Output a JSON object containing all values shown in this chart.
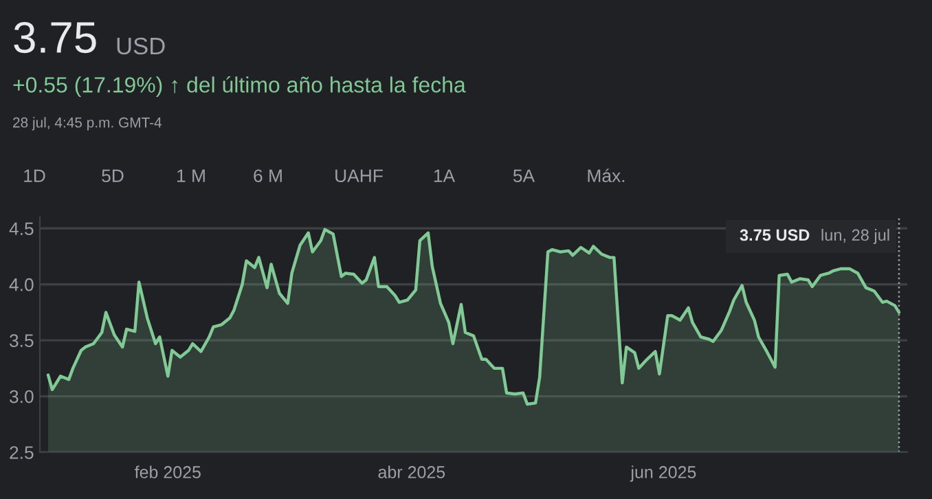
{
  "chart_data": {
    "type": "area",
    "title": "3.75",
    "subtitle": "+0.55 (17.19%) ↑ del último año hasta la fecha",
    "annotations": [
      "USD",
      "28 jul, 4:45 p.m. GMT-4",
      "1D",
      "5D",
      "1 M",
      "6 M",
      "UAHF",
      "1A",
      "5A",
      "Máx.",
      "3.75 USD",
      "lun, 28 jul"
    ],
    "x": [
      "2025-01-03",
      "2025-01-04",
      "2025-01-06",
      "2025-01-08",
      "2025-01-09",
      "2025-01-11",
      "2025-01-12",
      "2025-01-14",
      "2025-01-16",
      "2025-01-17",
      "2025-01-19",
      "2025-01-21",
      "2025-01-22",
      "2025-01-24",
      "2025-01-25",
      "2025-01-27",
      "2025-01-29",
      "2025-01-30",
      "2025-02-01",
      "2025-02-02",
      "2025-02-04",
      "2025-02-06",
      "2025-02-07",
      "2025-02-09",
      "2025-02-11",
      "2025-02-12",
      "2025-02-14",
      "2025-02-16",
      "2025-02-17",
      "2025-02-19",
      "2025-02-20",
      "2025-02-22",
      "2025-02-23",
      "2025-02-25",
      "2025-02-26",
      "2025-02-28",
      "2025-03-02",
      "2025-03-03",
      "2025-03-05",
      "2025-03-07",
      "2025-03-08",
      "2025-03-10",
      "2025-03-11",
      "2025-03-13",
      "2025-03-15",
      "2025-03-16",
      "2025-03-18",
      "2025-03-20",
      "2025-03-21",
      "2025-03-23",
      "2025-03-24",
      "2025-03-26",
      "2025-03-28",
      "2025-03-29",
      "2025-03-31",
      "2025-04-02",
      "2025-04-03",
      "2025-04-05",
      "2025-04-06",
      "2025-04-08",
      "2025-04-10",
      "2025-04-11",
      "2025-04-13",
      "2025-04-14",
      "2025-04-16",
      "2025-04-18",
      "2025-04-19",
      "2025-04-21",
      "2025-04-23",
      "2025-04-24",
      "2025-04-26",
      "2025-04-28",
      "2025-04-29",
      "2025-05-01",
      "2025-05-02",
      "2025-05-04",
      "2025-05-05",
      "2025-05-07",
      "2025-05-09",
      "2025-05-10",
      "2025-05-12",
      "2025-05-14",
      "2025-05-15",
      "2025-05-17",
      "2025-05-19",
      "2025-05-20",
      "2025-05-22",
      "2025-05-23",
      "2025-05-25",
      "2025-05-26",
      "2025-05-28",
      "2025-05-30",
      "2025-05-31",
      "2025-06-02",
      "2025-06-03",
      "2025-06-05",
      "2025-06-07",
      "2025-06-08",
      "2025-06-10",
      "2025-06-12",
      "2025-06-13",
      "2025-06-15",
      "2025-06-17",
      "2025-06-18",
      "2025-06-20",
      "2025-06-21",
      "2025-06-23",
      "2025-06-24",
      "2025-06-26",
      "2025-06-28",
      "2025-06-29",
      "2025-07-01",
      "2025-07-02",
      "2025-07-04",
      "2025-07-06",
      "2025-07-07",
      "2025-07-09",
      "2025-07-11",
      "2025-07-12",
      "2025-07-14",
      "2025-07-16",
      "2025-07-18",
      "2025-07-20",
      "2025-07-22",
      "2025-07-24",
      "2025-07-25",
      "2025-07-27",
      "2025-07-28"
    ],
    "series": [
      {
        "color": "#81c995",
        "values": [
          3.19,
          3.06,
          3.18,
          3.15,
          3.25,
          3.41,
          3.44,
          3.47,
          3.57,
          3.75,
          3.55,
          3.44,
          3.6,
          3.58,
          4.02,
          3.7,
          3.47,
          3.53,
          3.18,
          3.41,
          3.35,
          3.41,
          3.47,
          3.4,
          3.53,
          3.62,
          3.64,
          3.7,
          3.77,
          4.0,
          4.21,
          4.15,
          4.24,
          3.97,
          4.18,
          3.92,
          3.83,
          4.1,
          4.35,
          4.46,
          4.29,
          4.39,
          4.49,
          4.45,
          4.07,
          4.1,
          4.09,
          4.01,
          4.04,
          4.24,
          3.98,
          3.98,
          3.9,
          3.84,
          3.86,
          3.95,
          4.39,
          4.46,
          4.16,
          3.83,
          3.66,
          3.47,
          3.82,
          3.57,
          3.54,
          3.33,
          3.33,
          3.25,
          3.25,
          3.03,
          3.02,
          3.03,
          2.93,
          2.94,
          3.17,
          4.29,
          4.31,
          4.29,
          4.3,
          4.26,
          4.33,
          4.28,
          4.34,
          4.27,
          4.24,
          4.24,
          3.12,
          3.44,
          3.39,
          3.25,
          3.33,
          3.4,
          3.2,
          3.72,
          3.72,
          3.68,
          3.79,
          3.66,
          3.53,
          3.51,
          3.49,
          3.59,
          3.76,
          3.86,
          3.99,
          3.84,
          3.68,
          3.53,
          3.4,
          3.26,
          4.08,
          4.09,
          4.02,
          4.05,
          4.04,
          3.98,
          4.08,
          4.1,
          4.12,
          4.14,
          4.14,
          4.1,
          3.97,
          3.94,
          3.84,
          3.85,
          3.81,
          3.75
        ]
      }
    ],
    "xlim": [
      "2025-01-01",
      "2025-07-30"
    ],
    "xticks": [
      {
        "value": "2025-02-01",
        "label": "feb 2025"
      },
      {
        "value": "2025-04-01",
        "label": "abr 2025"
      },
      {
        "value": "2025-06-01",
        "label": "jun 2025"
      }
    ],
    "ylim": [
      2.5,
      4.6
    ],
    "yticks": [
      {
        "value": 2.5,
        "label": "2.5"
      },
      {
        "value": 3,
        "label": "3.0"
      },
      {
        "value": 3.5,
        "label": "3.5"
      },
      {
        "value": 4,
        "label": "4.0"
      },
      {
        "value": 4.5,
        "label": "4.5"
      }
    ],
    "grid": "y",
    "line_style": "solid",
    "ref_lines": [
      {
        "axis": "x",
        "value": "2025-07-28",
        "color": "#9aa0a6",
        "line_style": "dotted"
      }
    ]
  }
}
